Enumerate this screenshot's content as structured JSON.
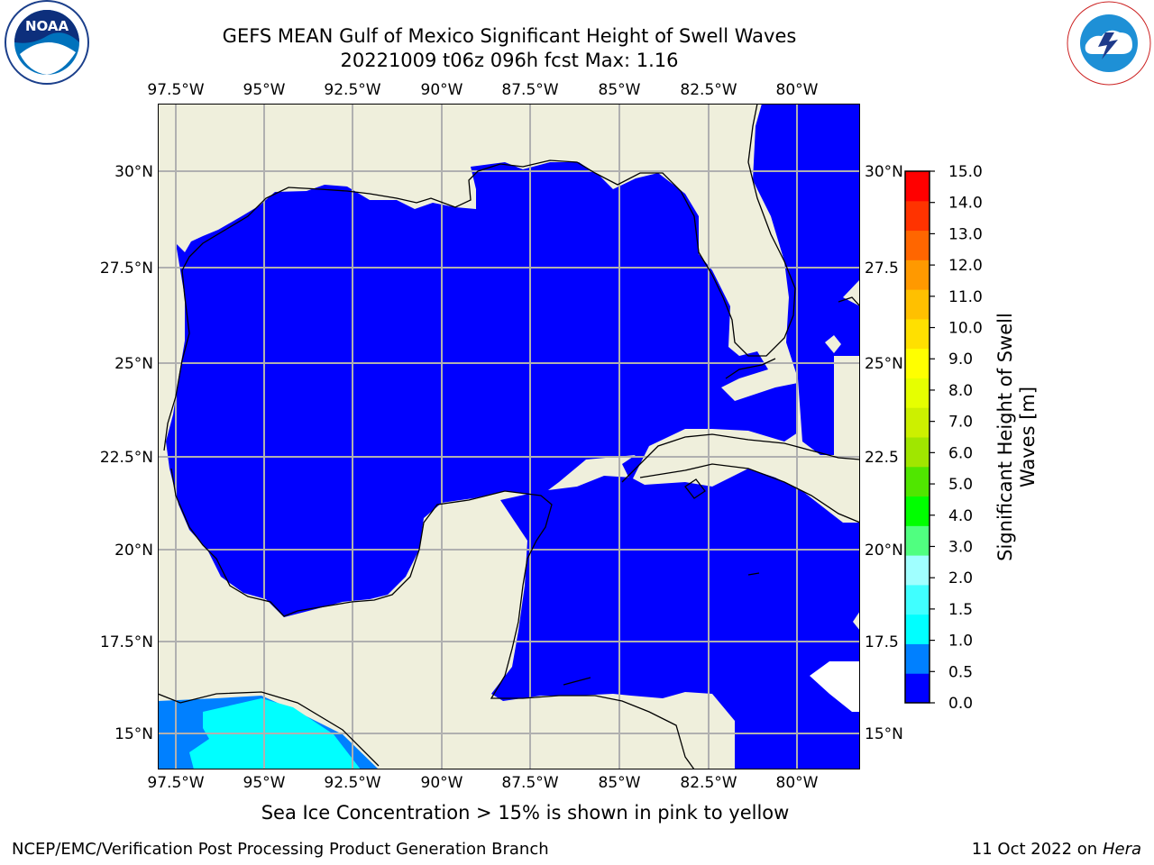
{
  "header": {
    "title_line1": "GEFS MEAN Gulf of Mexico Significant Height of Swell Waves",
    "title_line2": "20221009 t06z 096h fcst   Max: 1.16"
  },
  "logos": {
    "left": {
      "name": "noaa-logo",
      "text": "NOAA",
      "ring_text": "NATIONAL OCEANIC AND ATMOSPHERIC ADMINISTRATION · U.S. DEPARTMENT OF COMMERCE"
    },
    "right": {
      "name": "nws-logo",
      "ring_text": "NATIONAL WEATHER SERVICE"
    }
  },
  "map": {
    "lon_ticks": [
      "97.5°W",
      "95°W",
      "92.5°W",
      "90°W",
      "87.5°W",
      "85°W",
      "82.5°W",
      "80°W"
    ],
    "lat_ticks_left": [
      "30°N",
      "27.5°N",
      "25°N",
      "22.5°N",
      "20°N",
      "17.5°N",
      "15°N"
    ],
    "lat_ticks_right": [
      "30°N",
      "27.5",
      "25°N",
      "22.5",
      "20°N",
      "17.5",
      "15°N"
    ],
    "colors": {
      "land": "#efefdc",
      "sea_low": "#0000ff",
      "sea_mid": "#0080ff",
      "sea_high": "#00ffff",
      "grid": "#b0b0b0"
    }
  },
  "colorbar": {
    "label": "Significant Height of Swell Waves [m]",
    "tick_labels": [
      "15.0",
      "14.0",
      "13.0",
      "12.0",
      "11.0",
      "10.0",
      "9.0",
      "8.0",
      "7.0",
      "6.0",
      "5.0",
      "4.0",
      "3.0",
      "2.0",
      "1.5",
      "1.0",
      "0.5",
      "0.0"
    ],
    "colors": [
      "#0000ff",
      "#0080ff",
      "#00ffff",
      "#40ffff",
      "#a0ffff",
      "#50ff80",
      "#00ff00",
      "#50e600",
      "#a0e600",
      "#ccf000",
      "#e6ff00",
      "#ffff00",
      "#ffe000",
      "#ffc000",
      "#ff9900",
      "#ff6600",
      "#ff3300",
      "#ff0000"
    ]
  },
  "footer": {
    "ice_note": "Sea Ice Concentration > 15% is shown in pink to yellow",
    "left": "NCEP/EMC/Verification Post Processing Product Generation Branch",
    "right_date": "11 Oct 2022 on",
    "right_host": "Hera"
  }
}
